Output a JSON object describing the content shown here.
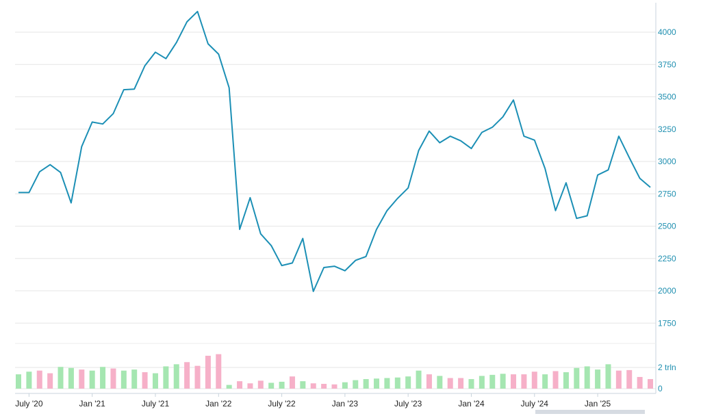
{
  "colors": {
    "line": "#1b8fb5",
    "grid": "#e6e6e6",
    "axis_text": "#1f8fb0",
    "up_bar": "#a5e6b1",
    "down_bar": "#f6b0c8",
    "scrollbar": "#d6dbe2"
  },
  "chart_data": [
    {
      "type": "line",
      "x_tick_labels": [
        "July '20",
        "Jan '21",
        "July '21",
        "Jan '22",
        "July '22",
        "Jan '23",
        "July '23",
        "Jan '24",
        "July '24",
        "Jan '25"
      ],
      "y_ticks": [
        1750,
        2000,
        2250,
        2500,
        2750,
        3000,
        3250,
        3500,
        3750,
        4000
      ],
      "ylim": [
        1500,
        4200
      ],
      "grid": true,
      "y_axis_side": "right",
      "values": [
        2760,
        2760,
        2920,
        2975,
        2915,
        2680,
        3115,
        3305,
        3290,
        3370,
        3555,
        3560,
        3740,
        3845,
        3795,
        3920,
        4080,
        4160,
        3910,
        3830,
        3570,
        2475,
        2720,
        2440,
        2350,
        2195,
        2215,
        2405,
        1995,
        2180,
        2190,
        2155,
        2235,
        2265,
        2475,
        2620,
        2715,
        2795,
        3085,
        3235,
        3145,
        3195,
        3160,
        3100,
        3225,
        3265,
        3345,
        3475,
        3195,
        3165,
        2945,
        2620,
        2835,
        2560,
        2580,
        2895,
        2935,
        3195,
        3030,
        2870,
        2800
      ]
    },
    {
      "type": "bar",
      "y_tick_labels": [
        "0",
        "2 trln"
      ],
      "values": [
        1.35,
        1.6,
        1.7,
        1.45,
        2.05,
        1.95,
        1.8,
        1.7,
        2.05,
        1.9,
        1.7,
        1.8,
        1.55,
        1.45,
        2.1,
        2.3,
        2.5,
        2.15,
        3.1,
        3.25,
        0.35,
        0.7,
        0.5,
        0.75,
        0.55,
        0.65,
        1.15,
        0.7,
        0.5,
        0.45,
        0.4,
        0.6,
        0.8,
        0.9,
        0.95,
        1.0,
        1.05,
        1.15,
        1.7,
        1.35,
        1.2,
        1.0,
        1.0,
        0.9,
        1.2,
        1.3,
        1.4,
        1.35,
        1.35,
        1.6,
        1.35,
        1.65,
        1.55,
        1.95,
        2.1,
        1.8,
        2.3,
        1.7,
        1.75,
        1.1,
        0.9
      ],
      "direction": [
        "up",
        "up",
        "down",
        "down",
        "up",
        "up",
        "down",
        "up",
        "up",
        "down",
        "up",
        "up",
        "down",
        "up",
        "up",
        "up",
        "down",
        "down",
        "down",
        "down",
        "up",
        "down",
        "down",
        "down",
        "up",
        "up",
        "down",
        "up",
        "down",
        "down",
        "down",
        "up",
        "up",
        "up",
        "up",
        "up",
        "up",
        "up",
        "up",
        "down",
        "up",
        "down",
        "down",
        "up",
        "up",
        "up",
        "up",
        "down",
        "down",
        "down",
        "up",
        "down",
        "up",
        "up",
        "up",
        "up",
        "up",
        "down",
        "down",
        "down",
        "down"
      ]
    }
  ]
}
